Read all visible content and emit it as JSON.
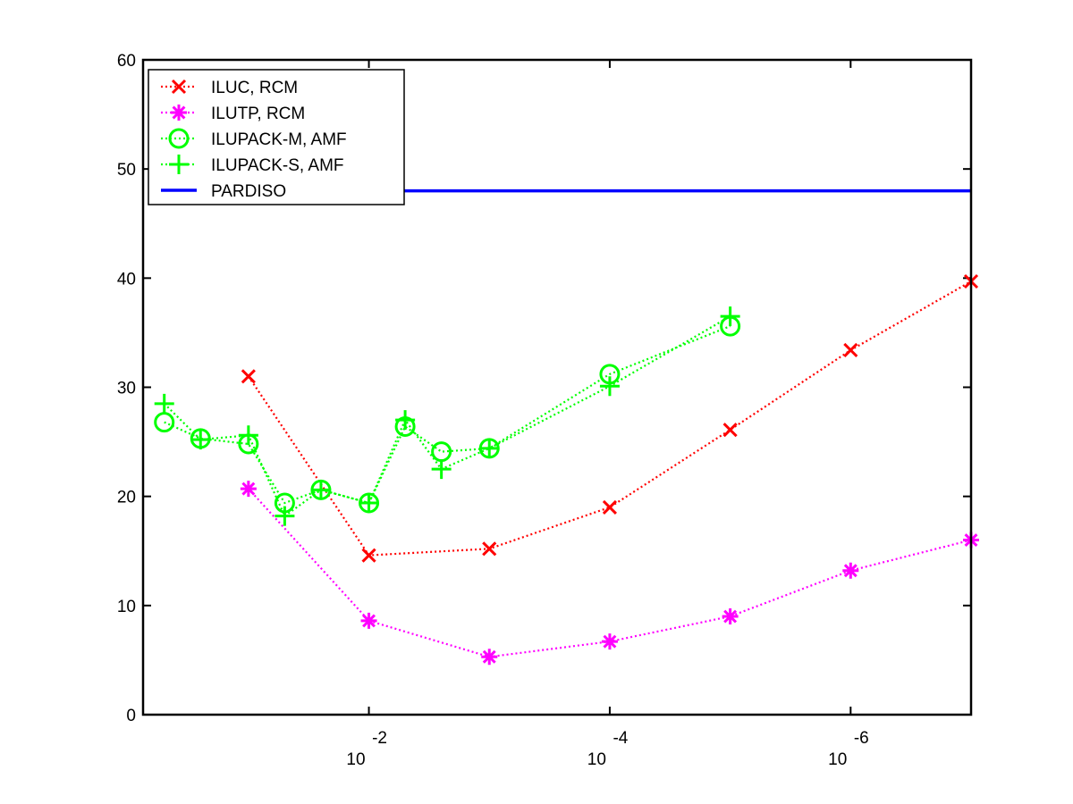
{
  "chart_data": {
    "type": "line",
    "title": "",
    "xlabel": "",
    "ylabel": "",
    "x_scale": "log",
    "x_direction": "decreasing",
    "xlim": [
      0.75,
      1e-07
    ],
    "ylim": [
      0,
      60
    ],
    "grid": false,
    "legend_position": "top-left",
    "x_ticks": [
      {
        "value": 0.01,
        "base": "10",
        "exponent": "-2"
      },
      {
        "value": 0.0001,
        "base": "10",
        "exponent": "-4"
      },
      {
        "value": 1e-06,
        "base": "10",
        "exponent": "-6"
      }
    ],
    "y_ticks": [
      "0",
      "10",
      "20",
      "30",
      "40",
      "50",
      "60"
    ],
    "series": [
      {
        "name": "ILUC, RCM",
        "color": "#ff0000",
        "marker": "x",
        "line_style": "dotted",
        "x": [
          0.1,
          0.01,
          0.001,
          0.0001,
          1e-05,
          1e-06,
          1e-07
        ],
        "y": [
          31,
          14.6,
          15.2,
          19,
          26.1,
          33.4,
          39.7
        ]
      },
      {
        "name": "ILUTP, RCM",
        "color": "#ff00ff",
        "marker": "asterisk",
        "line_style": "dotted",
        "x": [
          0.1,
          0.01,
          0.001,
          0.0001,
          1e-05,
          1e-06,
          1e-07
        ],
        "y": [
          20.7,
          8.6,
          5.3,
          6.7,
          9,
          13.2,
          16
        ]
      },
      {
        "name": "ILUPACK-M, AMF",
        "color": "#00ff00",
        "marker": "circle",
        "line_style": "dotted",
        "x": [
          0.5,
          0.25,
          0.1,
          0.05,
          0.025,
          0.01,
          0.005,
          0.0025,
          0.001,
          0.0001,
          1e-05
        ],
        "y": [
          26.8,
          25.3,
          24.8,
          19.4,
          20.6,
          19.4,
          26.4,
          24.1,
          24.4,
          31.2,
          35.6
        ]
      },
      {
        "name": "ILUPACK-S, AMF",
        "color": "#00ff00",
        "marker": "plus",
        "line_style": "dotted",
        "x": [
          0.5,
          0.25,
          0.1,
          0.05,
          0.025,
          0.01,
          0.005,
          0.0025,
          0.001,
          0.0001,
          1e-05
        ],
        "y": [
          28.5,
          25.2,
          25.6,
          18.2,
          20.6,
          19.4,
          27,
          22.5,
          24.4,
          30.1,
          36.5
        ]
      },
      {
        "name": "PARDISO",
        "color": "#0000ff",
        "marker": "none",
        "line_style": "solid",
        "x": [
          0.01,
          1e-07
        ],
        "y": [
          48,
          48
        ]
      }
    ]
  }
}
